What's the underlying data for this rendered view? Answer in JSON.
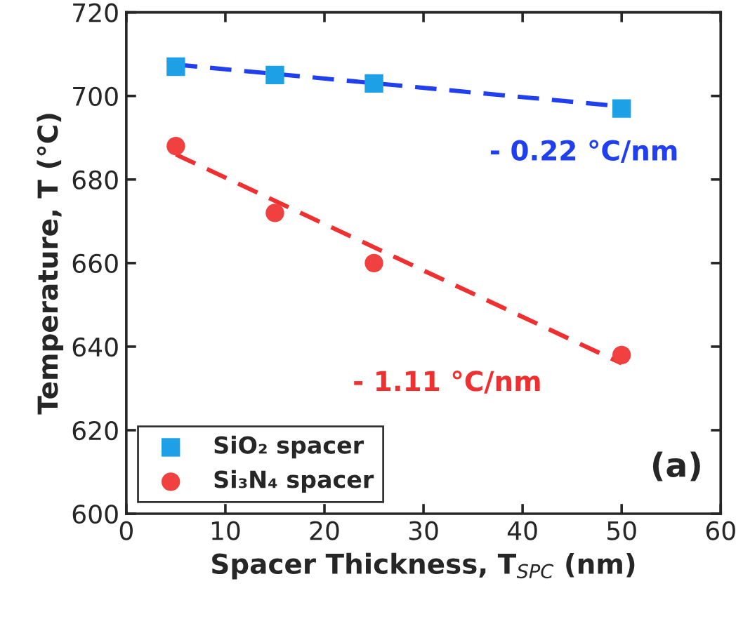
{
  "chart_data": {
    "type": "scatter",
    "xlabel": "Spacer Thickness, T$_{SPC}$ (nm)",
    "ylabel": "Temperature, T (°C)",
    "xlim": [
      0,
      60
    ],
    "xticks": [
      0,
      10,
      20,
      30,
      40,
      50,
      60
    ],
    "ylim": [
      600,
      720
    ],
    "yticks": [
      600,
      620,
      640,
      660,
      680,
      700,
      720
    ],
    "grid": false,
    "legend": "bottom left",
    "series": [
      {
        "name": "SiO₂ spacer",
        "color": "#1ea0e6",
        "marker": "square",
        "x": [
          5,
          15,
          25,
          50
        ],
        "values": [
          707,
          705,
          703,
          697
        ]
      },
      {
        "name": "Si₃N₄ spacer",
        "color": "#f04040",
        "marker": "circle",
        "x": [
          5,
          15,
          25,
          50
        ],
        "values": [
          688,
          672,
          660,
          638
        ]
      },
      {
        "type": "line",
        "color": "#1f3ff0",
        "line_style": "dashed",
        "x": [
          5,
          50
        ],
        "values": [
          707.5,
          697.5
        ]
      },
      {
        "type": "line",
        "color": "#f03030",
        "line_style": "dashed",
        "x": [
          5,
          50
        ],
        "values": [
          686,
          636
        ]
      }
    ],
    "annotations": [
      "- 0.22 °C/nm",
      "- 1.11 °C/nm",
      "(a)"
    ]
  }
}
